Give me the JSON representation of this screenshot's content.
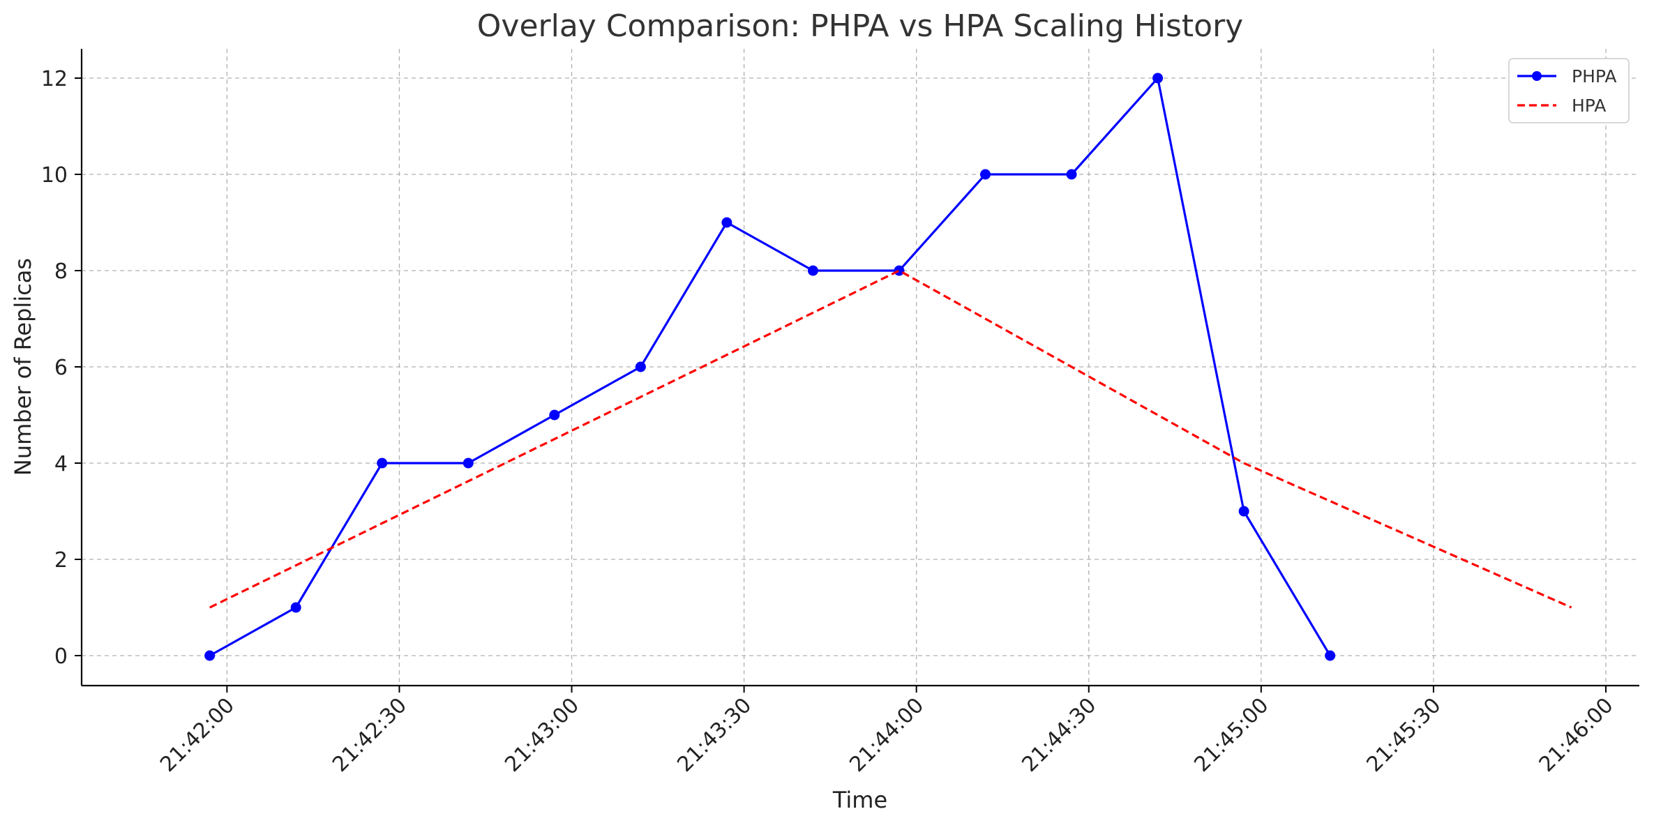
{
  "chart_data": {
    "type": "line",
    "title": "Overlay Comparison: PHPA vs HPA Scaling History",
    "xlabel": "Time",
    "ylabel": "Number of Replicas",
    "x_axis_kind": "time",
    "xlim": [
      "21:41:50",
      "21:46:00"
    ],
    "ylim": [
      -0.6,
      12.6
    ],
    "x_ticks": [
      "21:42:00",
      "21:42:30",
      "21:43:00",
      "21:43:30",
      "21:44:00",
      "21:44:30",
      "21:45:00",
      "21:45:30",
      "21:46:00"
    ],
    "y_ticks": [
      0,
      2,
      4,
      6,
      8,
      10,
      12
    ],
    "grid": true,
    "legend_position": "top-right",
    "series": [
      {
        "name": "PHPA",
        "color": "#0000ff",
        "line_style": "solid",
        "marker": "circle",
        "x": [
          "21:41:57",
          "21:42:12",
          "21:42:27",
          "21:42:42",
          "21:42:57",
          "21:43:12",
          "21:43:27",
          "21:43:42",
          "21:43:57",
          "21:44:12",
          "21:44:27",
          "21:44:42",
          "21:44:57",
          "21:45:12"
        ],
        "values": [
          0,
          1,
          4,
          4,
          5,
          6,
          9,
          8,
          8,
          10,
          10,
          12,
          3,
          0
        ]
      },
      {
        "name": "HPA",
        "color": "#ff0000",
        "line_style": "dashed",
        "marker": "none",
        "x": [
          "21:41:57",
          "21:43:57",
          "21:44:57",
          "21:45:54"
        ],
        "values": [
          1,
          8,
          4,
          1
        ]
      }
    ]
  }
}
